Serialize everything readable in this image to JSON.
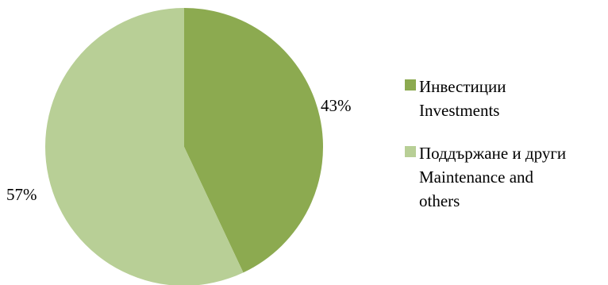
{
  "chart_data": {
    "type": "pie",
    "title": "",
    "slices": [
      {
        "label_bg": "Инвестиции",
        "label_en": "Investments",
        "value": 43,
        "value_label": "43%",
        "color": "#8caa50"
      },
      {
        "label_bg": "Поддържане и други",
        "label_en": "Maintenance and others",
        "value": 57,
        "value_label": "57%",
        "color": "#b8cf96"
      }
    ],
    "legend_position": "right",
    "start_angle": "12 o'clock",
    "direction": "clockwise"
  },
  "legend": {
    "items": [
      {
        "line1": "Инвестиции",
        "line2": "Investments",
        "line3": ""
      },
      {
        "line1": "Поддържане и други",
        "line2": "Maintenance and",
        "line3": "others"
      }
    ]
  }
}
